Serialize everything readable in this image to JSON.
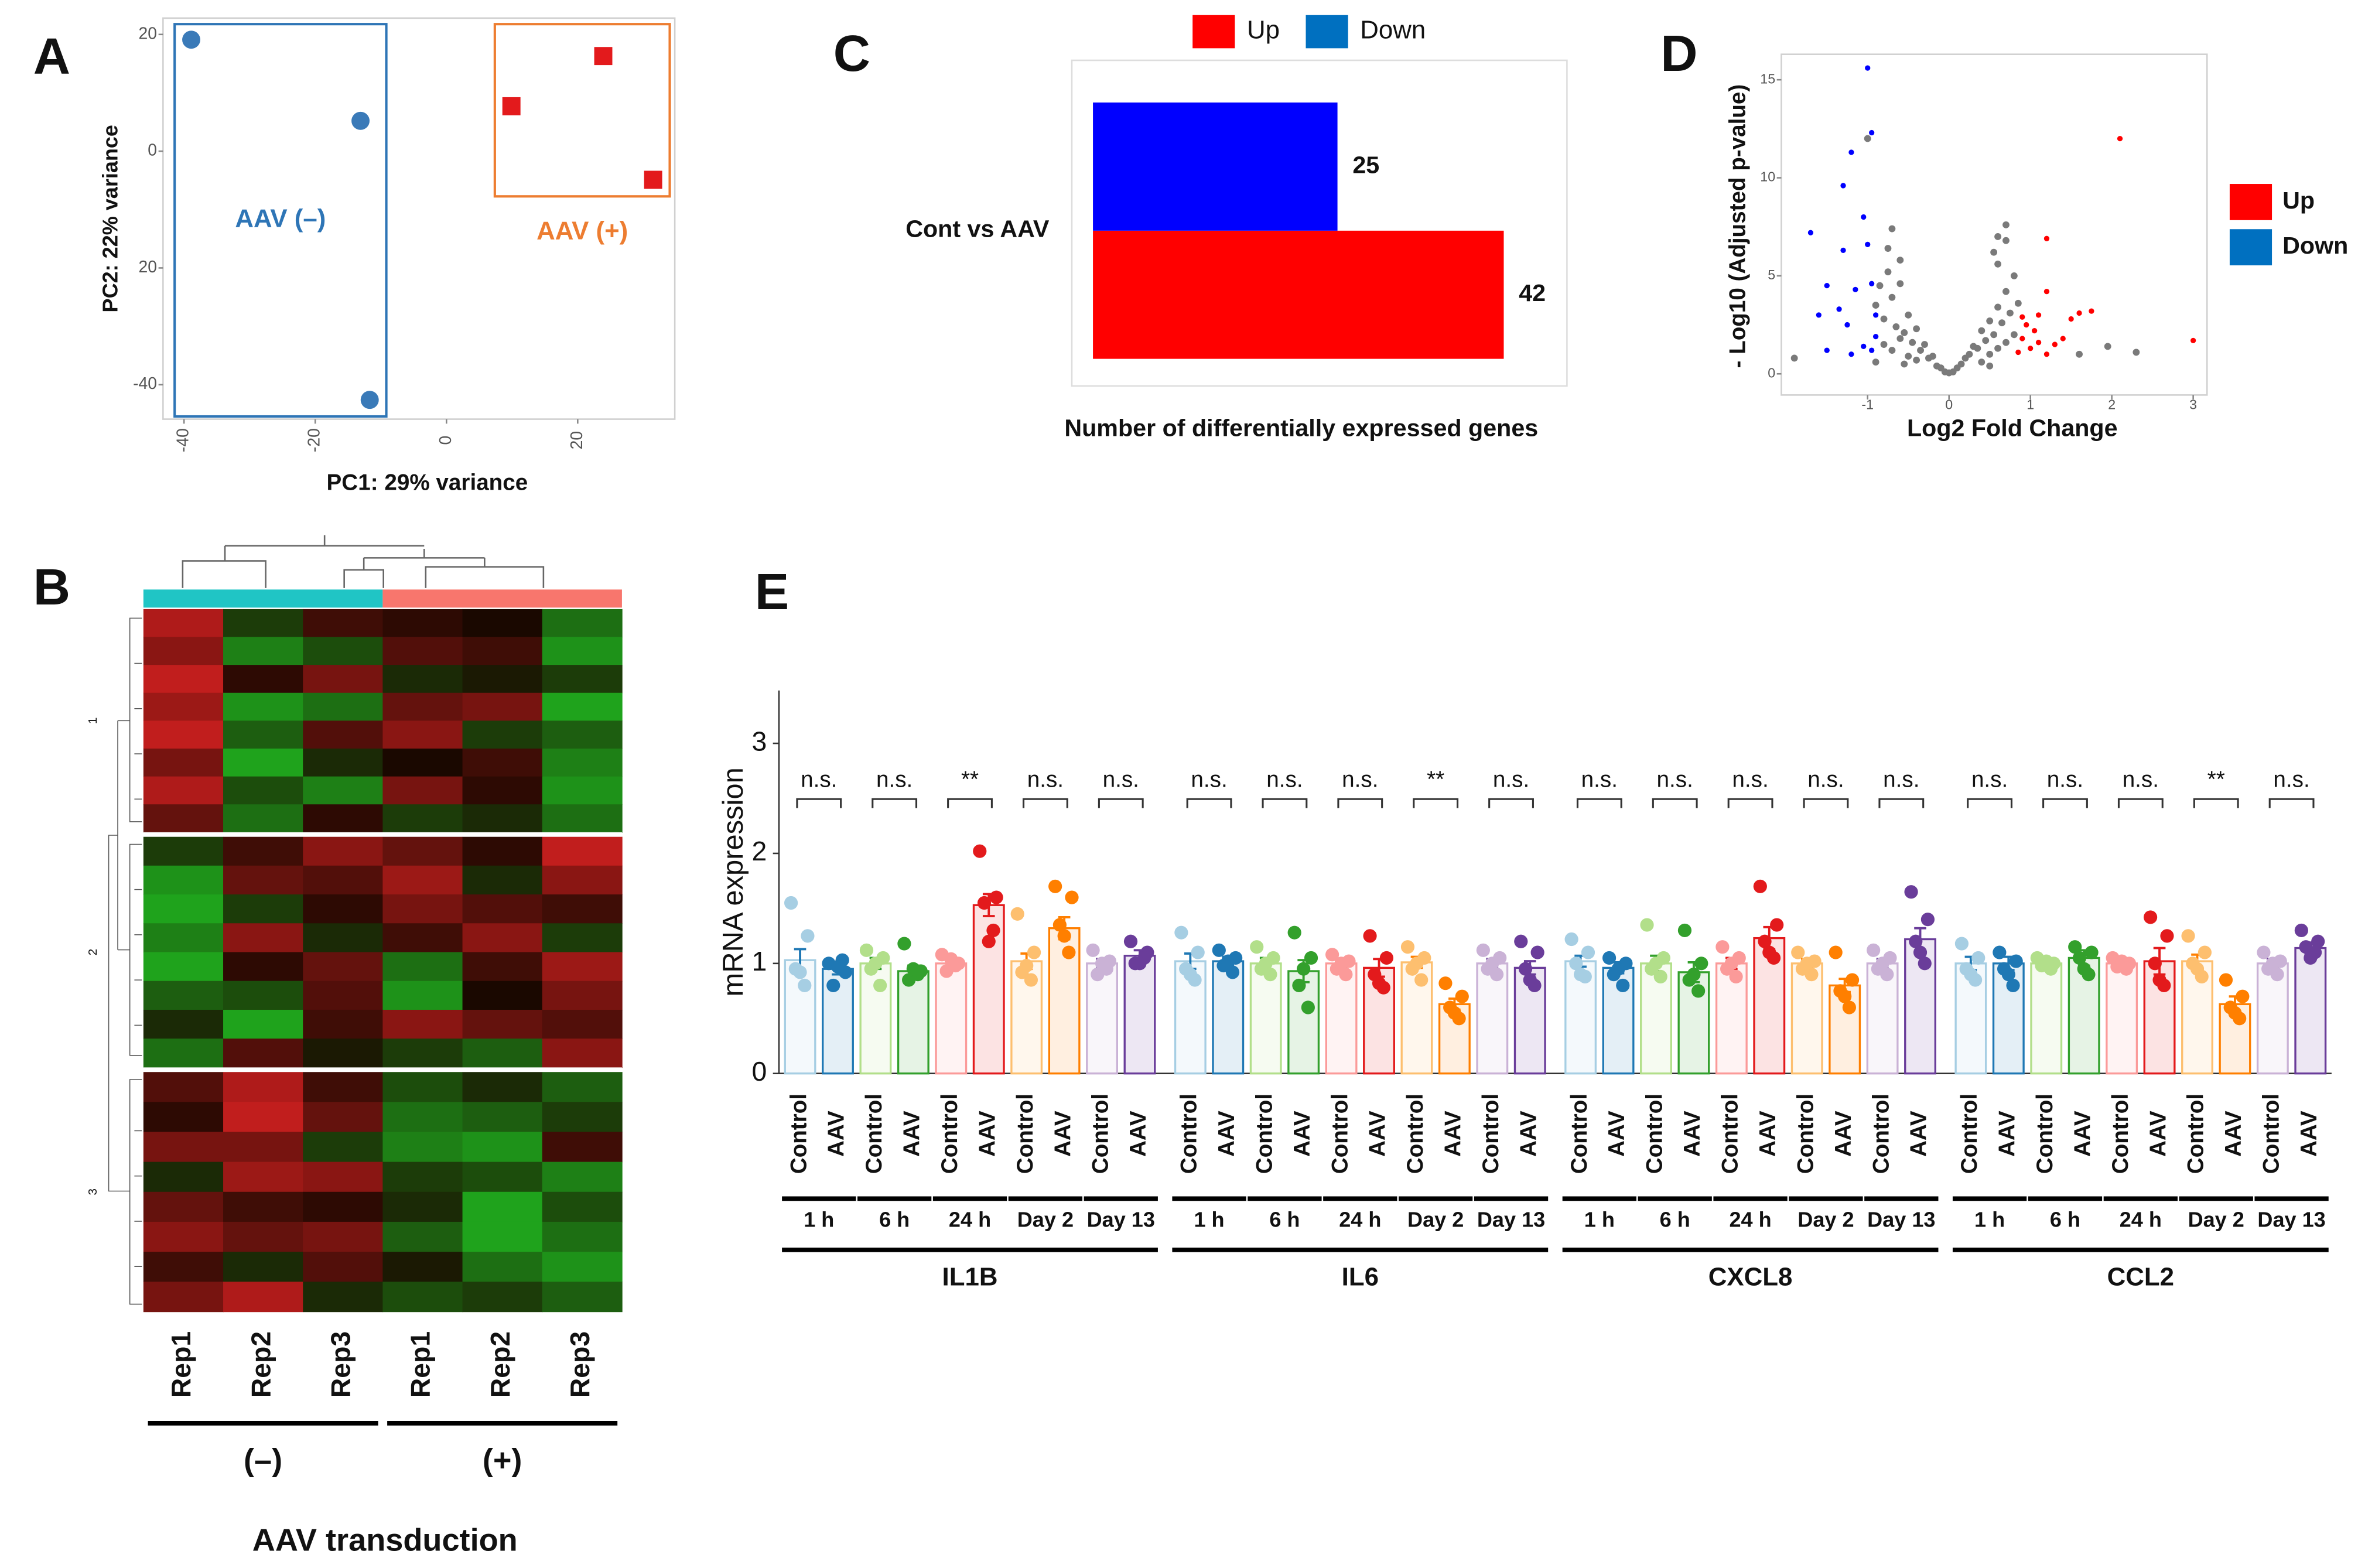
{
  "chart_data": [
    {
      "panel": "A",
      "type": "scatter",
      "xlabel": "PC1: 29% variance",
      "ylabel": "PC2: 22% variance",
      "xlim": [
        -43.2,
        34.8
      ],
      "ylim": [
        -45.9,
        22.8
      ],
      "xticks": [
        -40,
        -20,
        0,
        20
      ],
      "yticks": [
        20,
        0,
        {
          "value": -20,
          "label": "20"
        },
        -40
      ],
      "series": [
        {
          "name": "AAV (–)",
          "color": "#3a7ab8",
          "box_color": "#2e75b6",
          "marker": "circle",
          "x": [
            -38.9,
            -13.1,
            -11.7
          ],
          "y": [
            19.1,
            5.2,
            -42.6
          ]
        },
        {
          "name": "AAV (+)",
          "color": "#e31a1c",
          "box_color": "#ed7d31",
          "marker": "square",
          "x": [
            9.9,
            23.9,
            31.5
          ],
          "y": [
            7.7,
            16.3,
            -4.9
          ]
        }
      ]
    },
    {
      "panel": "B",
      "type": "heatmap",
      "xlabel": "AAV transduction",
      "columns": [
        "Rep1",
        "Rep2",
        "Rep3",
        "Rep1",
        "Rep2",
        "Rep3"
      ],
      "groups": [
        {
          "name": "(–)",
          "color": "#20c5c5"
        },
        {
          "name": "(+)",
          "color": "#f8766d"
        }
      ],
      "clusters": [
        "1",
        "2",
        "3"
      ],
      "colormap": [
        "#1fb41f",
        "#1a0800",
        "#d42020"
      ],
      "zlim": [
        -1,
        1
      ],
      "values": [
        [
          0.8,
          -0.3,
          0.2,
          0.1,
          0.0,
          -0.6
        ],
        [
          0.6,
          -0.7,
          -0.4,
          0.3,
          0.2,
          -0.8
        ],
        [
          0.9,
          0.1,
          0.5,
          -0.2,
          -0.1,
          -0.3
        ],
        [
          0.7,
          -0.8,
          -0.6,
          0.4,
          0.5,
          -0.9
        ],
        [
          0.9,
          -0.5,
          0.3,
          0.6,
          -0.3,
          -0.5
        ],
        [
          0.5,
          -0.9,
          -0.2,
          0.0,
          0.2,
          -0.7
        ],
        [
          0.8,
          -0.4,
          -0.7,
          0.5,
          0.1,
          -0.8
        ],
        [
          0.4,
          -0.6,
          0.1,
          -0.3,
          -0.2,
          -0.6
        ],
        [
          -0.3,
          0.2,
          0.6,
          0.4,
          0.1,
          0.9
        ],
        [
          -0.8,
          0.4,
          0.3,
          0.7,
          -0.2,
          0.6
        ],
        [
          -0.9,
          -0.3,
          0.1,
          0.5,
          0.3,
          0.2
        ],
        [
          -0.7,
          0.6,
          -0.2,
          0.2,
          0.6,
          -0.3
        ],
        [
          -0.9,
          0.1,
          0.4,
          -0.6,
          0.2,
          0.7
        ],
        [
          -0.5,
          -0.4,
          0.3,
          -0.8,
          0.0,
          0.5
        ],
        [
          -0.2,
          -0.9,
          0.2,
          0.6,
          0.4,
          0.3
        ],
        [
          -0.6,
          0.3,
          -0.1,
          -0.3,
          -0.5,
          0.6
        ],
        [
          0.3,
          0.8,
          0.2,
          -0.4,
          -0.2,
          -0.5
        ],
        [
          0.1,
          0.9,
          0.4,
          -0.6,
          -0.5,
          -0.3
        ],
        [
          0.5,
          0.5,
          -0.3,
          -0.7,
          -0.8,
          0.2
        ],
        [
          -0.2,
          0.7,
          0.6,
          -0.3,
          -0.4,
          -0.7
        ],
        [
          0.4,
          0.2,
          0.1,
          -0.2,
          -0.9,
          -0.4
        ],
        [
          0.6,
          0.4,
          0.5,
          -0.5,
          -0.9,
          -0.6
        ],
        [
          0.2,
          -0.2,
          0.3,
          -0.1,
          -0.6,
          -0.8
        ],
        [
          0.5,
          0.8,
          -0.2,
          -0.4,
          -0.3,
          -0.5
        ]
      ]
    },
    {
      "panel": "C",
      "type": "bar",
      "orientation": "horizontal",
      "legend": "top",
      "categories": [
        "Cont vs AAV"
      ],
      "xlabel": "Number of differentially expressed genes",
      "xlim": [
        0,
        48
      ],
      "series": [
        {
          "name": "Up",
          "color": "#ff0000",
          "values": [
            42
          ]
        },
        {
          "name": "Down",
          "color": "#0000ff",
          "values": [
            25
          ]
        }
      ],
      "legend_colors": [
        "#ff0000",
        "#0070c0"
      ]
    },
    {
      "panel": "D",
      "type": "scatter",
      "xlabel": "Log2 Fold Change",
      "ylabel": "- Log10 (Adjusted p-value)",
      "legend": "right",
      "xlim": [
        -2.06,
        3.17
      ],
      "ylim": [
        -1.08,
        16.3
      ],
      "xticks": [
        -1,
        0,
        1,
        2,
        3
      ],
      "yticks": [
        0,
        5,
        10,
        15
      ],
      "series": [
        {
          "name": "Up",
          "color": "#ff0000",
          "x": [
            2.1,
            1.2,
            3.0,
            1.2,
            1.6,
            1.75,
            1.5,
            0.95,
            1.05,
            0.9,
            1.1,
            1.3,
            1.0,
            0.85,
            1.2,
            0.9,
            1.4,
            1.1
          ],
          "y": [
            12,
            6.9,
            1.7,
            4.2,
            3.1,
            3.2,
            2.8,
            2.5,
            2.2,
            1.8,
            1.6,
            1.5,
            1.3,
            1.1,
            1.0,
            2.9,
            1.8,
            3.0
          ]
        },
        {
          "name": "Down",
          "color": "#0000ff",
          "x": [
            -1.0,
            -0.95,
            -1.2,
            -1.3,
            -1.05,
            -1.7,
            -1.3,
            -1.0,
            -1.5,
            -1.15,
            -0.95,
            -1.35,
            -1.6,
            -0.9,
            -1.25,
            -1.05,
            -1.5,
            -0.95,
            -1.2,
            -0.9
          ],
          "y": [
            15.6,
            12.3,
            11.3,
            9.6,
            8,
            7.2,
            6.3,
            6.6,
            4.5,
            4.3,
            4.6,
            3.3,
            3.0,
            3.0,
            2.5,
            1.4,
            1.2,
            1.2,
            1.0,
            1.9
          ]
        }
      ],
      "legend_colors": [
        "#ff0000",
        "#0070c0"
      ],
      "points_ns": {
        "color": "#7a7a7a",
        "x": [
          -0.9,
          -0.85,
          -0.8,
          -0.75,
          -0.7,
          -0.65,
          -0.6,
          -0.55,
          -0.5,
          -0.45,
          -0.4,
          -0.35,
          -0.3,
          -0.25,
          -0.2,
          -0.15,
          -0.1,
          -0.05,
          0,
          0.05,
          0.1,
          0.15,
          0.2,
          0.25,
          0.3,
          0.35,
          0.4,
          0.45,
          0.5,
          0.55,
          0.6,
          0.65,
          0.7,
          0.75,
          0.8,
          0.85,
          -0.8,
          -0.7,
          -0.6,
          -0.5,
          -0.4,
          0.4,
          0.5,
          0.6,
          0.7,
          0.8,
          -0.75,
          -0.6,
          0.6,
          0.7,
          -1.0,
          0.7,
          0.6,
          -0.7,
          1.95,
          2.3,
          -1.9,
          1.6,
          0.55,
          -0.9,
          -0.55,
          0.5
        ],
        "y": [
          3.5,
          4.5,
          2.8,
          5.2,
          3.9,
          2.4,
          4.6,
          2.1,
          3.0,
          1.6,
          2.3,
          1.2,
          1.5,
          0.8,
          0.9,
          0.4,
          0.3,
          0.1,
          0.05,
          0.1,
          0.3,
          0.5,
          0.8,
          1.0,
          1.4,
          1.3,
          2.2,
          1.7,
          2.7,
          2.0,
          3.4,
          2.6,
          4.2,
          3.1,
          5.0,
          3.6,
          1.5,
          1.2,
          1.8,
          0.9,
          0.7,
          0.6,
          1.0,
          1.3,
          1.6,
          2.0,
          6.4,
          5.8,
          5.6,
          6.8,
          12.0,
          7.6,
          7.0,
          7.4,
          1.4,
          1.1,
          0.8,
          1.0,
          6.2,
          0.6,
          0.5,
          0.4
        ]
      }
    },
    {
      "panel": "E",
      "type": "bar",
      "ylabel": "mRNA expression",
      "ylim": [
        0,
        3.48
      ],
      "yticks": [
        0,
        1,
        2,
        3
      ],
      "conditions": [
        "Control",
        "AAV"
      ],
      "times": [
        "1 h",
        "6 h",
        "24 h",
        "Day 2",
        "Day 13"
      ],
      "colors": [
        [
          "#a6cee3",
          "#1f78b4"
        ],
        [
          "#b2df8a",
          "#33a02c"
        ],
        [
          "#fb9a99",
          "#e31a1c"
        ],
        [
          "#fdbf6f",
          "#ff7f00"
        ],
        [
          "#cab2d6",
          "#6a3d9a"
        ]
      ],
      "genes": [
        {
          "name": "IL1B",
          "values": [
            [
              1.03,
              0.95
            ],
            [
              1.0,
              0.93
            ],
            [
              1.0,
              1.53
            ],
            [
              1.02,
              1.32
            ],
            [
              1.0,
              1.07
            ]
          ],
          "errors": [
            [
              0.1,
              0.05
            ],
            [
              0.05,
              0.05
            ],
            [
              0.03,
              0.1
            ],
            [
              0.07,
              0.1
            ],
            [
              0.04,
              0.05
            ]
          ],
          "points": [
            [
              [
                1.55,
                1.25,
                0.95,
                0.8,
                0.92
              ],
              [
                1.0,
                0.92,
                0.8,
                1.03,
                0.97
              ]
            ],
            [
              [
                1.12,
                1.05,
                0.95,
                0.8,
                1.0
              ],
              [
                1.18,
                0.93,
                0.85,
                0.9,
                0.95
              ]
            ],
            [
              [
                1.08,
                1.0,
                0.93,
                0.98,
                1.04
              ],
              [
                2.02,
                1.6,
                1.55,
                1.3,
                1.2
              ]
            ],
            [
              [
                1.45,
                1.1,
                0.92,
                0.85,
                0.98
              ],
              [
                1.7,
                1.6,
                1.35,
                1.1,
                1.25
              ]
            ],
            [
              [
                1.12,
                1.02,
                0.9,
                0.95,
                1.0
              ],
              [
                1.2,
                1.1,
                1.0,
                1.05,
                1.0
              ]
            ]
          ],
          "significance": [
            "n.s.",
            "n.s.",
            "**",
            "n.s.",
            "n.s."
          ]
        },
        {
          "name": "IL6",
          "values": [
            [
              1.02,
              1.02
            ],
            [
              1.0,
              0.93
            ],
            [
              1.0,
              0.96
            ],
            [
              1.01,
              0.63
            ],
            [
              1.0,
              0.96
            ]
          ],
          "errors": [
            [
              0.07,
              0.04
            ],
            [
              0.05,
              0.1
            ],
            [
              0.04,
              0.08
            ],
            [
              0.05,
              0.05
            ],
            [
              0.04,
              0.06
            ]
          ],
          "points": [
            [
              [
                1.28,
                1.1,
                0.95,
                0.85,
                0.9
              ],
              [
                1.12,
                1.05,
                0.98,
                0.92,
                1.02
              ]
            ],
            [
              [
                1.15,
                1.05,
                0.95,
                0.9,
                1.0
              ],
              [
                1.28,
                1.05,
                0.8,
                0.6,
                0.95
              ]
            ],
            [
              [
                1.08,
                1.02,
                0.95,
                0.9,
                1.0
              ],
              [
                1.25,
                1.05,
                0.9,
                0.78,
                0.82
              ]
            ],
            [
              [
                1.15,
                1.05,
                0.95,
                0.85,
                1.0
              ],
              [
                0.82,
                0.7,
                0.6,
                0.5,
                0.55
              ]
            ],
            [
              [
                1.12,
                1.05,
                0.95,
                0.9,
                1.0
              ],
              [
                1.2,
                1.1,
                0.95,
                0.8,
                0.85
              ]
            ]
          ],
          "significance": [
            "n.s.",
            "n.s.",
            "n.s.",
            "**",
            "n.s."
          ]
        },
        {
          "name": "CXCL8",
          "values": [
            [
              1.02,
              0.96
            ],
            [
              1.0,
              0.92
            ],
            [
              1.0,
              1.23
            ],
            [
              1.0,
              0.8
            ],
            [
              1.0,
              1.22
            ]
          ],
          "errors": [
            [
              0.05,
              0.05
            ],
            [
              0.07,
              0.09
            ],
            [
              0.05,
              0.1
            ],
            [
              0.04,
              0.06
            ],
            [
              0.04,
              0.1
            ]
          ],
          "points": [
            [
              [
                1.22,
                1.1,
                1.0,
                0.88,
                0.9
              ],
              [
                1.05,
                1.0,
                0.9,
                0.8,
                0.95
              ]
            ],
            [
              [
                1.35,
                1.05,
                0.95,
                0.88,
                1.0
              ],
              [
                1.3,
                1.0,
                0.85,
                0.75,
                0.9
              ]
            ],
            [
              [
                1.15,
                1.05,
                0.95,
                0.88,
                1.0
              ],
              [
                1.7,
                1.35,
                1.2,
                1.05,
                1.1
              ]
            ],
            [
              [
                1.1,
                1.02,
                0.95,
                0.9,
                1.0
              ],
              [
                1.1,
                0.85,
                0.75,
                0.6,
                0.7
              ]
            ],
            [
              [
                1.12,
                1.05,
                0.95,
                0.9,
                1.0
              ],
              [
                1.65,
                1.4,
                1.2,
                1.0,
                1.1
              ]
            ]
          ],
          "significance": [
            "n.s.",
            "n.s.",
            "n.s.",
            "n.s.",
            "n.s."
          ]
        },
        {
          "name": "CCL2",
          "values": [
            [
              1.0,
              1.0
            ],
            [
              1.0,
              1.05
            ],
            [
              1.0,
              1.02
            ],
            [
              1.02,
              0.63
            ],
            [
              1.0,
              1.14
            ]
          ],
          "errors": [
            [
              0.06,
              0.06
            ],
            [
              0.03,
              0.07
            ],
            [
              0.03,
              0.12
            ],
            [
              0.06,
              0.07
            ],
            [
              0.04,
              0.05
            ]
          ],
          "points": [
            [
              [
                1.18,
                1.05,
                0.95,
                0.85,
                0.9
              ],
              [
                1.1,
                1.02,
                0.95,
                0.8,
                0.9
              ]
            ],
            [
              [
                1.05,
                1.0,
                0.98,
                0.95,
                1.02
              ],
              [
                1.15,
                1.1,
                1.05,
                0.9,
                0.95
              ]
            ],
            [
              [
                1.05,
                1.0,
                0.97,
                0.95,
                1.02
              ],
              [
                1.42,
                1.25,
                1.0,
                0.8,
                0.85
              ]
            ],
            [
              [
                1.25,
                1.1,
                1.0,
                0.88,
                0.95
              ],
              [
                0.85,
                0.7,
                0.6,
                0.5,
                0.55
              ]
            ],
            [
              [
                1.1,
                1.02,
                0.95,
                0.9,
                1.0
              ],
              [
                1.3,
                1.2,
                1.15,
                1.1,
                1.05
              ]
            ]
          ],
          "significance": [
            "n.s.",
            "n.s.",
            "n.s.",
            "**",
            "n.s."
          ]
        }
      ]
    }
  ]
}
